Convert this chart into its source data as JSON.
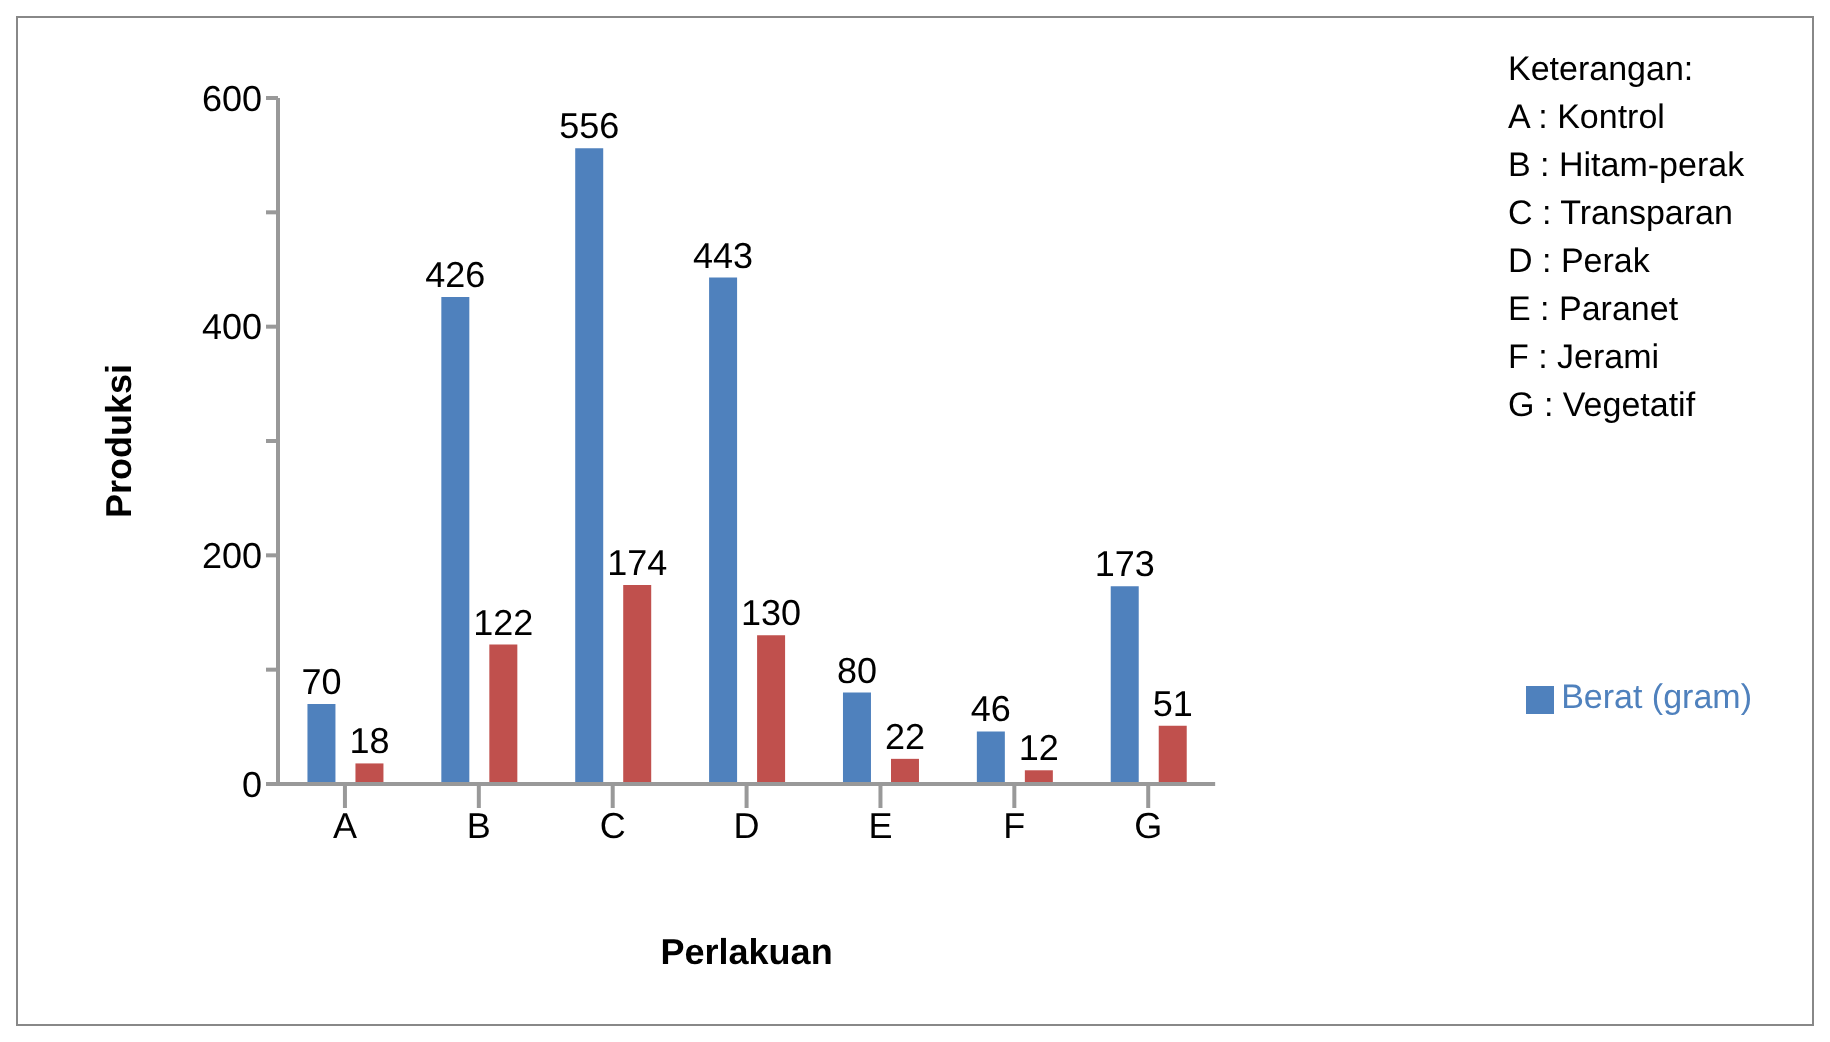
{
  "chart_data": {
    "type": "bar",
    "xlabel": "Perlakuan",
    "ylabel": "Produksi",
    "categories": [
      "A",
      "B",
      "C",
      "D",
      "E",
      "F",
      "G"
    ],
    "series": [
      {
        "name": "Berat (gram)",
        "color": "#4f81bd",
        "values": [
          70,
          426,
          556,
          443,
          80,
          46,
          173
        ]
      },
      {
        "color": "#c0504d",
        "values": [
          18,
          122,
          174,
          130,
          22,
          12,
          51
        ]
      }
    ],
    "ylim": [
      0,
      600
    ],
    "yticks": [
      0,
      {
        "value": 100,
        "label": null
      },
      200,
      {
        "value": 300,
        "label": null
      },
      400,
      {
        "value": 500,
        "label": null
      },
      600
    ],
    "data_labels": true,
    "grid": false,
    "legend": "right",
    "annotations": [
      "Keterangan:",
      "A : Kontrol",
      "B : Hitam-perak",
      "C : Transparan",
      "D : Perak",
      "E : Paranet",
      "F : Jerami",
      "G : Vegetatif"
    ]
  }
}
